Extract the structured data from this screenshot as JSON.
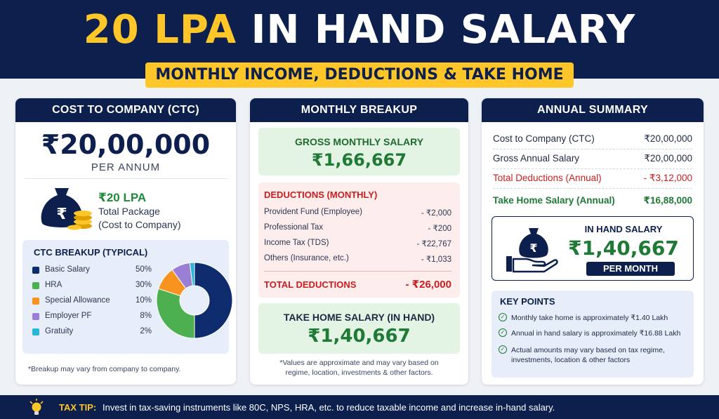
{
  "header": {
    "title_highlight": "20 LPA",
    "title_rest": "IN HAND SALARY",
    "subtitle": "MONTHLY INCOME, DEDUCTIONS & TAKE HOME"
  },
  "ctc_panel": {
    "heading": "COST TO COMPANY (CTC)",
    "amount": "₹20,00,000",
    "period": "PER ANNUM",
    "lpa": "₹20 LPA",
    "package_line1": "Total Package",
    "package_line2": "(Cost to Company)",
    "breakup_title": "CTC BREAKUP (TYPICAL)",
    "footnote": "*Breakup may vary from company to company."
  },
  "chart_data": {
    "type": "pie",
    "title": "CTC BREAKUP (TYPICAL)",
    "categories": [
      "Basic Salary",
      "HRA",
      "Special Allowance",
      "Employer PF",
      "Gratuity"
    ],
    "labels": [
      "50%",
      "30%",
      "10%",
      "8%",
      "2%"
    ],
    "values": [
      50,
      30,
      10,
      8,
      2
    ],
    "colors": [
      "#0e2b6e",
      "#4caf50",
      "#f7931e",
      "#9b7fd6",
      "#29b6d6"
    ],
    "legend": "left"
  },
  "monthly_panel": {
    "heading": "MONTHLY BREAKUP",
    "gross_label": "GROSS MONTHLY SALARY",
    "gross_value": "₹1,66,667",
    "deductions_title": "DEDUCTIONS (MONTHLY)",
    "deductions": [
      {
        "name": "Provident Fund (Employee)",
        "value": "- ₹2,000"
      },
      {
        "name": "Professional Tax",
        "value": "- ₹200"
      },
      {
        "name": "Income Tax (TDS)",
        "value": "- ₹22,767"
      },
      {
        "name": "Others (Insurance, etc.)",
        "value": "- ₹1,033"
      }
    ],
    "total_label": "TOTAL DEDUCTIONS",
    "total_value": "- ₹26,000",
    "takehome_label": "TAKE HOME SALARY (IN HAND)",
    "takehome_value": "₹1,40,667",
    "footnote_line1": "*Values are approximate and may vary based on",
    "footnote_line2": "regime, location, investments & other factors."
  },
  "annual_panel": {
    "heading": "ANNUAL SUMMARY",
    "rows": [
      {
        "name": "Cost to Company (CTC)",
        "value": "₹20,00,000"
      },
      {
        "name": "Gross Annual Salary",
        "value": "₹20,00,000"
      },
      {
        "name": "Total Deductions (Annual)",
        "value": "- ₹3,12,000"
      },
      {
        "name": "Take Home Salary (Annual)",
        "value": "₹16,88,000"
      }
    ],
    "inhand_label": "IN HAND SALARY",
    "inhand_value": "₹1,40,667",
    "per_month": "PER MONTH",
    "keypoints_title": "KEY POINTS",
    "keypoints": [
      "Monthly take home is approximately ₹1.40 Lakh",
      "Annual in hand salary is approximately ₹16.88 Lakh",
      "Actual amounts may vary based on tax regime, investments, location & other factors"
    ]
  },
  "footer": {
    "tip_label": "TAX TIP:",
    "tip_text": "Invest in tax-saving instruments like 80C, NPS, HRA, etc. to reduce taxable income and increase in-hand salary."
  }
}
